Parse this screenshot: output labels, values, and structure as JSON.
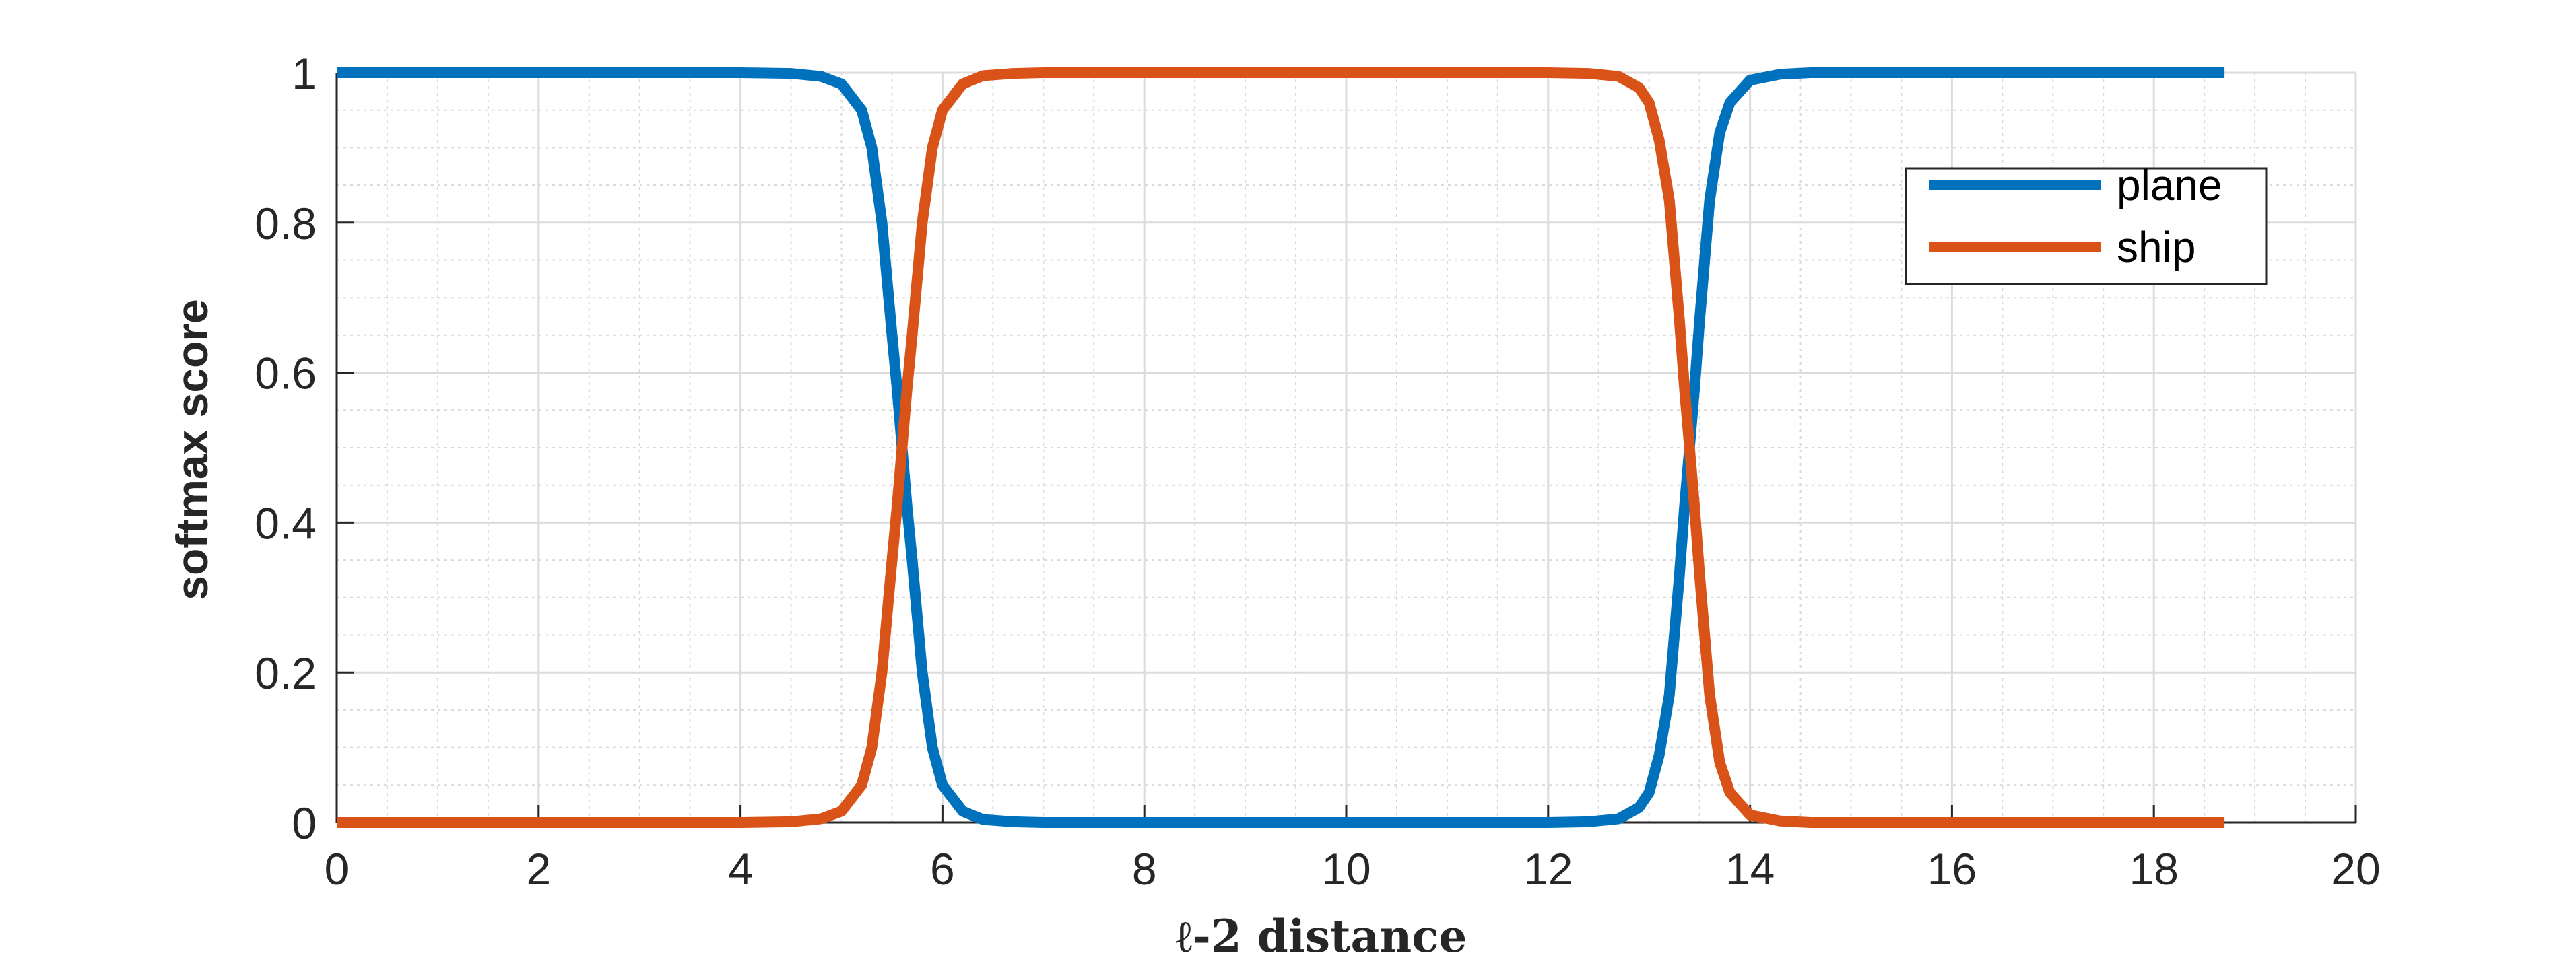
{
  "chart_data": {
    "type": "line",
    "title": "",
    "xlabel": "ℓ-2 distance",
    "ylabel": "softmax score",
    "xlim": [
      0,
      20
    ],
    "ylim": [
      0,
      1
    ],
    "xticks": [
      0,
      2,
      4,
      6,
      8,
      10,
      12,
      14,
      16,
      18,
      20
    ],
    "yticks": [
      0,
      0.2,
      0.4,
      0.6,
      0.8,
      1
    ],
    "xtick_labels": [
      "0",
      "2",
      "4",
      "6",
      "8",
      "10",
      "12",
      "14",
      "16",
      "18",
      "20"
    ],
    "ytick_labels": [
      "0",
      "0.2",
      "0.4",
      "0.6",
      "0.8",
      "1"
    ],
    "grid": "major and minor",
    "legend_position": "top-right",
    "x": [
      0,
      1,
      2,
      3,
      4,
      4.5,
      4.8,
      5.0,
      5.2,
      5.3,
      5.4,
      5.5,
      5.55,
      5.6,
      5.65,
      5.7,
      5.8,
      5.9,
      6.0,
      6.2,
      6.4,
      6.7,
      7,
      8,
      9,
      10,
      11,
      12,
      12.4,
      12.7,
      12.9,
      13.0,
      13.1,
      13.2,
      13.3,
      13.35,
      13.4,
      13.45,
      13.5,
      13.6,
      13.7,
      13.8,
      14.0,
      14.3,
      14.6,
      15,
      16,
      17,
      18,
      18.7
    ],
    "series": [
      {
        "name": "plane",
        "color": "#0072BD",
        "values": [
          1,
          1,
          1,
          1,
          1,
          0.999,
          0.995,
          0.985,
          0.95,
          0.9,
          0.8,
          0.65,
          0.58,
          0.5,
          0.42,
          0.35,
          0.2,
          0.1,
          0.05,
          0.015,
          0.004,
          0.001,
          0,
          0,
          0,
          0,
          0,
          0,
          0.001,
          0.005,
          0.02,
          0.04,
          0.09,
          0.17,
          0.33,
          0.42,
          0.5,
          0.58,
          0.67,
          0.83,
          0.92,
          0.96,
          0.99,
          0.998,
          1,
          1,
          1,
          1,
          1,
          1
        ]
      },
      {
        "name": "ship",
        "color": "#D95319",
        "values": [
          0,
          0,
          0,
          0,
          0,
          0.001,
          0.005,
          0.015,
          0.05,
          0.1,
          0.2,
          0.35,
          0.42,
          0.5,
          0.58,
          0.65,
          0.8,
          0.9,
          0.95,
          0.985,
          0.996,
          0.999,
          1,
          1,
          1,
          1,
          1,
          1,
          0.999,
          0.995,
          0.98,
          0.96,
          0.91,
          0.83,
          0.67,
          0.58,
          0.5,
          0.42,
          0.33,
          0.17,
          0.08,
          0.04,
          0.01,
          0.002,
          0,
          0,
          0,
          0,
          0,
          0
        ]
      }
    ]
  }
}
